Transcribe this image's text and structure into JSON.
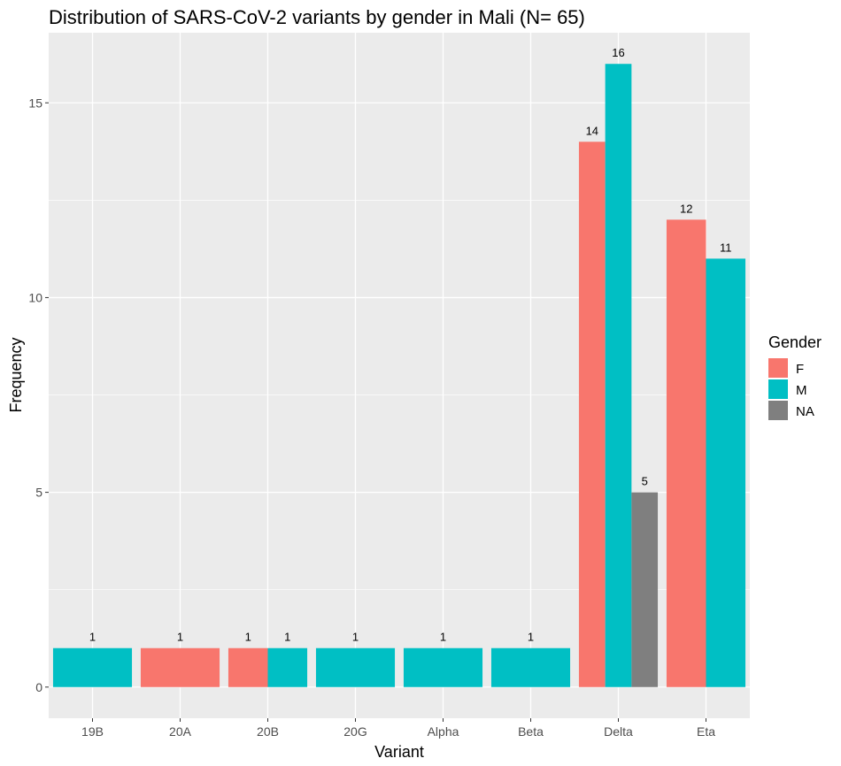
{
  "chart_data": {
    "type": "bar",
    "title": "Distribution of SARS-CoV-2 variants by gender in Mali (N= 65)",
    "xlabel": "Variant",
    "ylabel": "Frequency",
    "categories": [
      "19B",
      "20A",
      "20B",
      "20G",
      "Alpha",
      "Beta",
      "Delta",
      "Eta"
    ],
    "ylim": [
      -0.8,
      16.8
    ],
    "yticks": [
      0,
      5,
      10,
      15
    ],
    "grid": true,
    "legend": {
      "title": "Gender",
      "position": "right"
    },
    "series": [
      {
        "name": "F",
        "color": "#F8766D"
      },
      {
        "name": "M",
        "color": "#00BFC4"
      },
      {
        "name": "NA",
        "color": "#7F7F7F"
      }
    ],
    "bars": [
      {
        "category": "19B",
        "groups": [
          {
            "gender": "M",
            "value": 1
          }
        ]
      },
      {
        "category": "20A",
        "groups": [
          {
            "gender": "F",
            "value": 1
          }
        ]
      },
      {
        "category": "20B",
        "groups": [
          {
            "gender": "F",
            "value": 1
          },
          {
            "gender": "M",
            "value": 1
          }
        ]
      },
      {
        "category": "20G",
        "groups": [
          {
            "gender": "M",
            "value": 1
          }
        ]
      },
      {
        "category": "Alpha",
        "groups": [
          {
            "gender": "M",
            "value": 1
          }
        ]
      },
      {
        "category": "Beta",
        "groups": [
          {
            "gender": "M",
            "value": 1
          }
        ]
      },
      {
        "category": "Delta",
        "groups": [
          {
            "gender": "F",
            "value": 14
          },
          {
            "gender": "M",
            "value": 16
          },
          {
            "gender": "NA",
            "value": 5
          }
        ]
      },
      {
        "category": "Eta",
        "groups": [
          {
            "gender": "F",
            "value": 12
          },
          {
            "gender": "M",
            "value": 11
          }
        ]
      }
    ],
    "colors": {
      "panel_background": "#EBEBEB",
      "grid_major": "#FFFFFF"
    }
  }
}
